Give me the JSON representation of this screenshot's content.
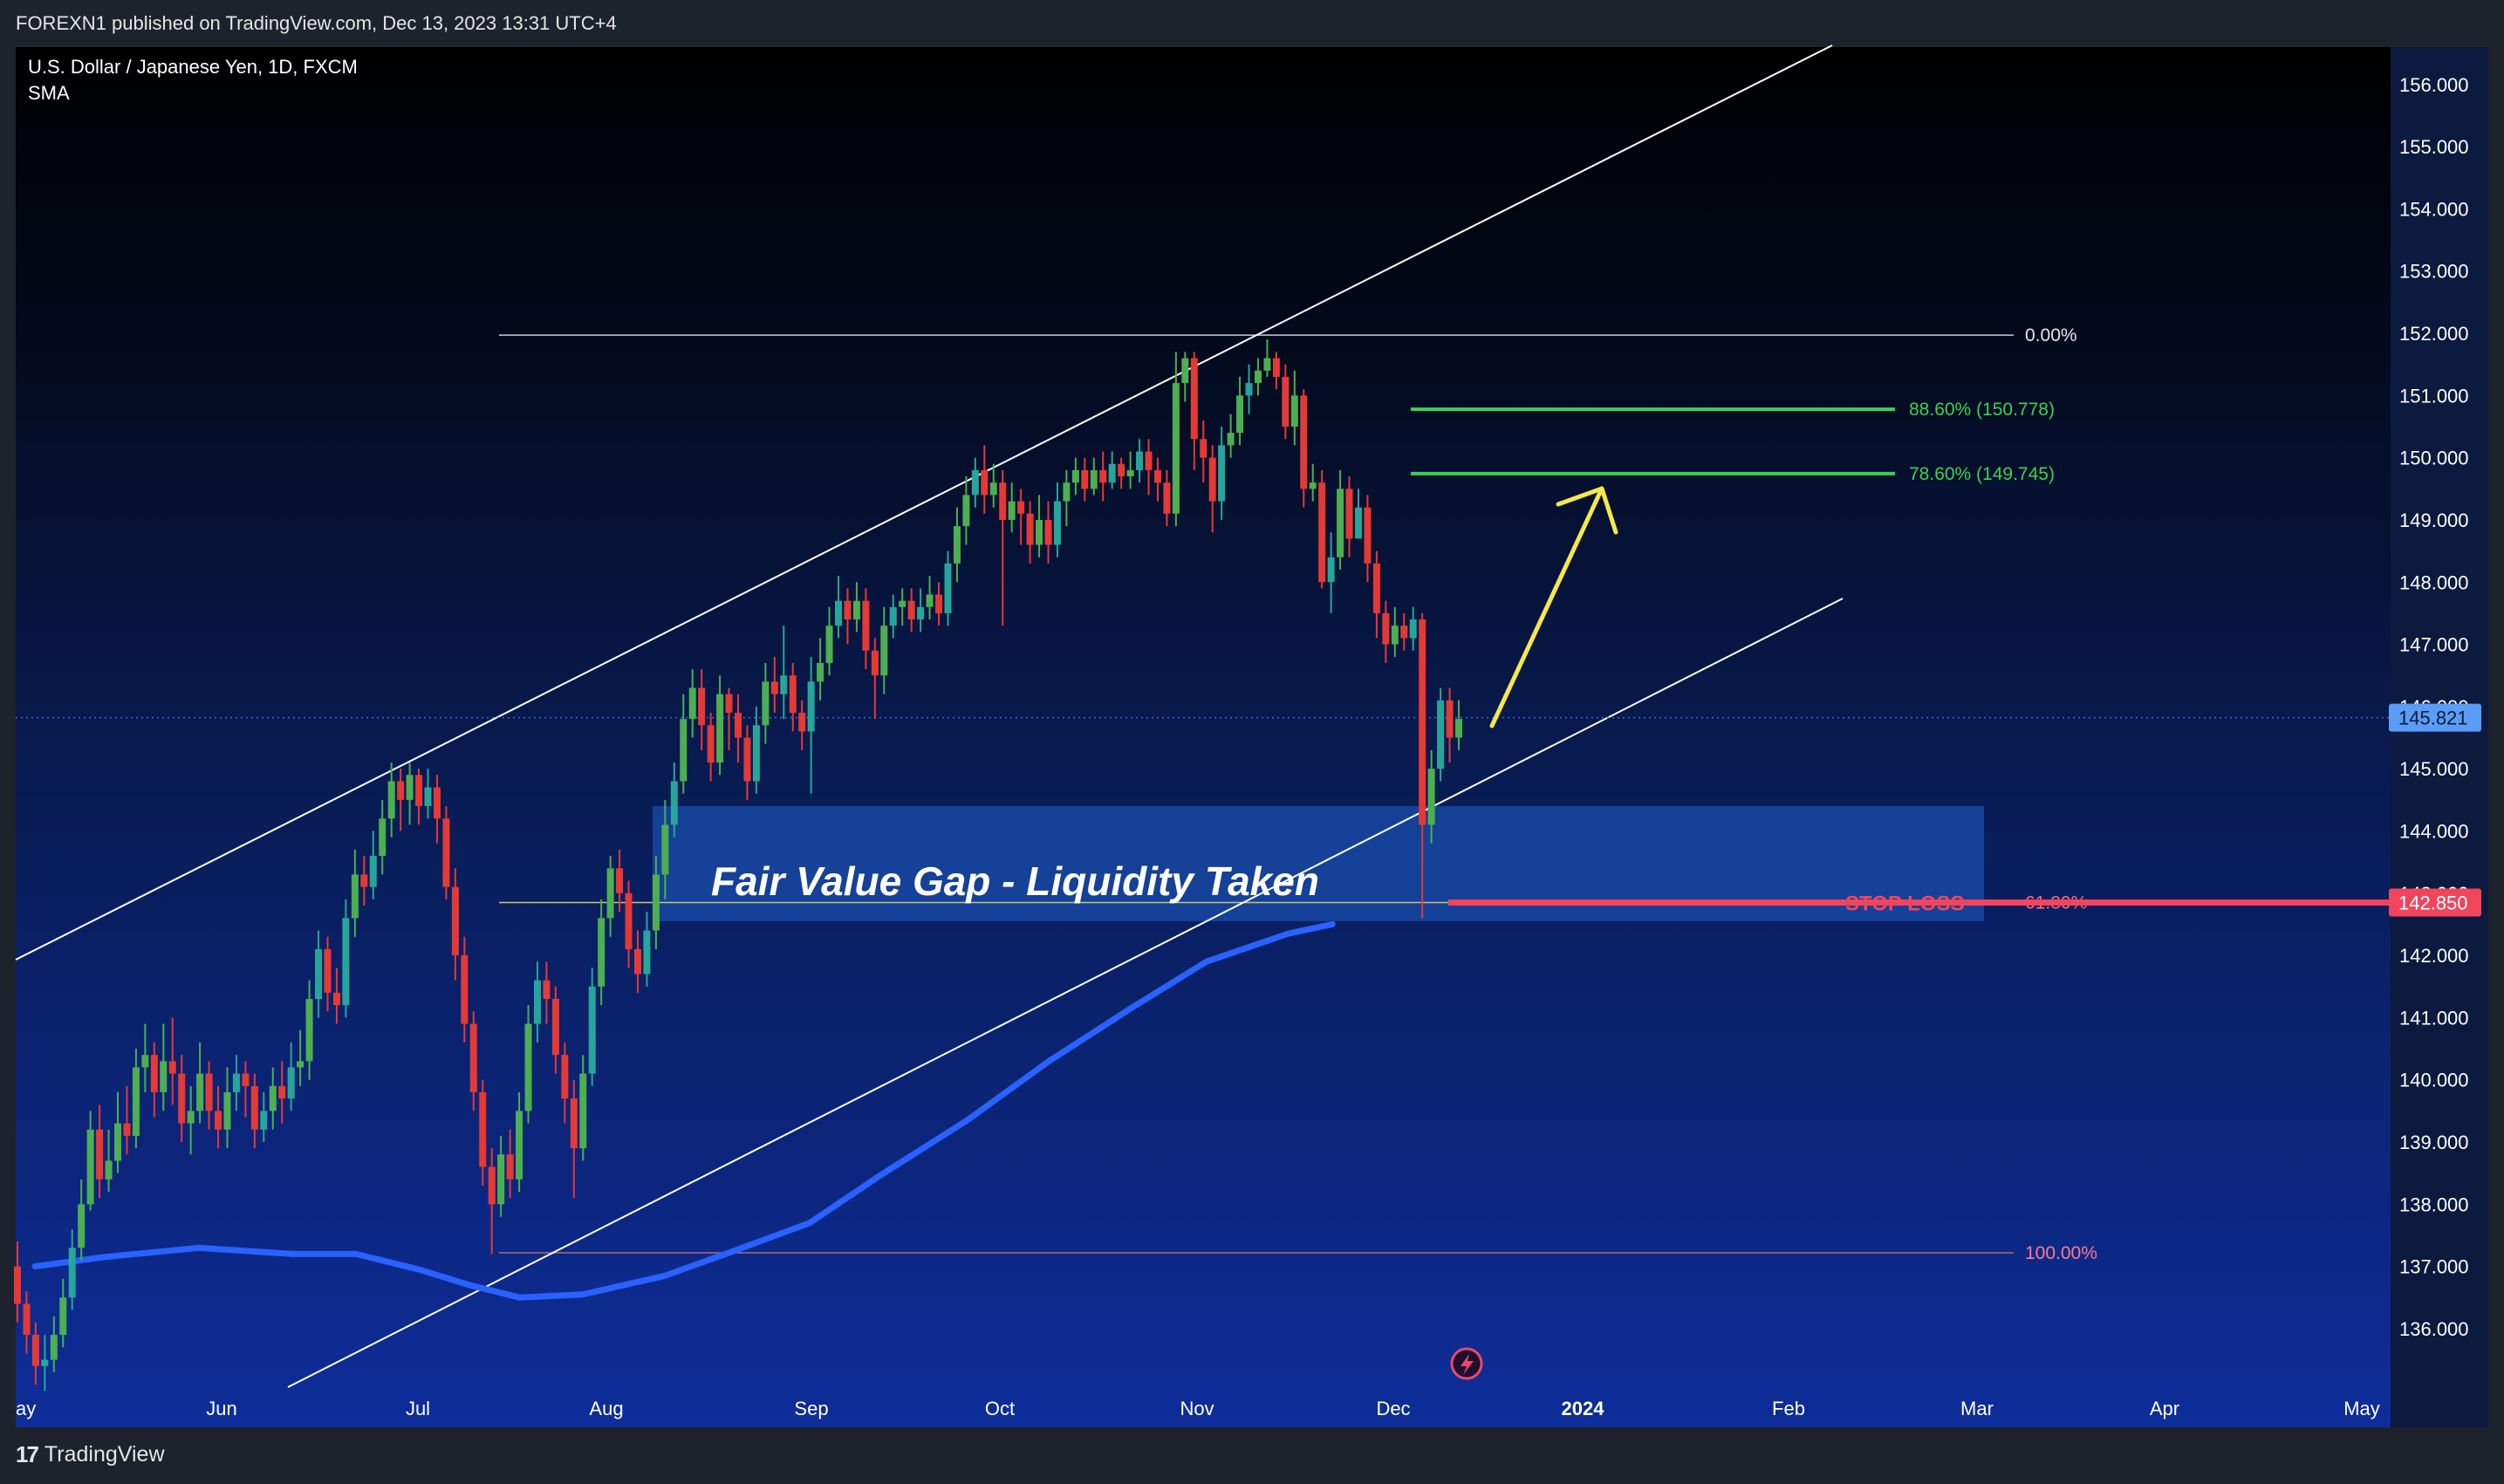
{
  "header": {
    "published": "FOREXN1 published on TradingView.com, Dec 13, 2023 13:31 UTC+4"
  },
  "footer": {
    "logo_glyph": "17",
    "logo_text": "TradingView"
  },
  "chart_data": {
    "type": "candlestick",
    "title": "U.S. Dollar / Japanese Yen, 1D, FXCM",
    "indicator": "SMA",
    "ylim": [
      135.2,
      156.6
    ],
    "y_ticks": [
      "136.000",
      "137.000",
      "138.000",
      "139.000",
      "140.000",
      "141.000",
      "142.000",
      "143.000",
      "144.000",
      "145.000",
      "146.000",
      "147.000",
      "148.000",
      "149.000",
      "150.000",
      "151.000",
      "152.000",
      "153.000",
      "154.000",
      "155.000",
      "156.000"
    ],
    "x_ticks": [
      "ay",
      "Jun",
      "Jul",
      "Aug",
      "Sep",
      "Oct",
      "Nov",
      "Dec",
      "2024",
      "Feb",
      "Mar",
      "Apr",
      "May"
    ],
    "last_price": "145.821",
    "stop_loss_price": "142.850",
    "fib_levels": [
      {
        "label": "0.00%",
        "price": 151.97
      },
      {
        "label": "88.60% (150.778)",
        "price": 150.778
      },
      {
        "label": "78.60% (149.745)",
        "price": 149.745
      },
      {
        "label": "61.80%",
        "price": 142.85
      },
      {
        "label": "100.00%",
        "price": 137.22
      }
    ],
    "annotations": {
      "fvg_label": "Fair Value Gap  - Liquidity Taken",
      "stop_loss_label": "STOP LOSS",
      "fvg_zone": [
        142.55,
        144.4
      ]
    },
    "colors": {
      "up": "#26a69a",
      "up_bright": "#4caf50",
      "down": "#e53935",
      "sma": "#2962ff",
      "fib_green": "#39d353",
      "stop_loss": "#f0455d",
      "arrow": "#f5e84a"
    },
    "sma": [
      [
        "May 20",
        137.0
      ],
      [
        "May 31",
        137.15
      ],
      [
        "Jun 15",
        137.3
      ],
      [
        "Jun 30",
        137.2
      ],
      [
        "Jul 10",
        137.2
      ],
      [
        "Jul 20",
        136.95
      ],
      [
        "Jul 28",
        136.7
      ],
      [
        "Aug 05",
        136.5
      ],
      [
        "Aug 15",
        136.55
      ],
      [
        "Aug 28",
        136.85
      ],
      [
        "Sep 08",
        137.25
      ],
      [
        "Sep 20",
        137.7
      ],
      [
        "Oct 01",
        138.45
      ],
      [
        "Oct 15",
        139.35
      ],
      [
        "Oct 28",
        140.3
      ],
      [
        "Nov 10",
        141.15
      ],
      [
        "Nov 22",
        141.9
      ],
      [
        "Dec 05",
        142.35
      ],
      [
        "Dec 12",
        142.5
      ]
    ],
    "candles": [
      [
        137.0,
        136.4,
        137.4,
        136.1
      ],
      [
        136.4,
        135.9,
        136.6,
        135.6
      ],
      [
        135.9,
        135.4,
        136.1,
        135.1
      ],
      [
        135.4,
        135.5,
        135.9,
        135.0
      ],
      [
        135.5,
        135.9,
        136.2,
        135.3
      ],
      [
        135.9,
        136.5,
        136.8,
        135.7
      ],
      [
        136.5,
        137.3,
        137.6,
        136.3
      ],
      [
        137.3,
        138.0,
        138.4,
        137.1
      ],
      [
        138.0,
        139.2,
        139.5,
        137.9
      ],
      [
        139.2,
        138.4,
        139.6,
        138.1
      ],
      [
        138.4,
        138.7,
        139.2,
        138.2
      ],
      [
        138.7,
        139.3,
        139.8,
        138.5
      ],
      [
        139.3,
        139.1,
        139.9,
        138.8
      ],
      [
        139.1,
        140.2,
        140.5,
        138.9
      ],
      [
        140.2,
        140.4,
        140.9,
        139.8
      ],
      [
        140.4,
        139.8,
        140.6,
        139.4
      ],
      [
        139.8,
        140.3,
        140.9,
        139.5
      ],
      [
        140.3,
        140.1,
        141.0,
        139.6
      ],
      [
        140.1,
        139.3,
        140.4,
        139.0
      ],
      [
        139.3,
        139.5,
        139.9,
        138.8
      ],
      [
        139.5,
        140.1,
        140.6,
        139.3
      ],
      [
        140.1,
        139.5,
        140.3,
        139.2
      ],
      [
        139.5,
        139.2,
        139.9,
        138.9
      ],
      [
        139.2,
        139.8,
        140.2,
        138.9
      ],
      [
        139.8,
        140.1,
        140.4,
        139.5
      ],
      [
        140.1,
        139.9,
        140.3,
        139.4
      ],
      [
        139.9,
        139.2,
        140.1,
        138.9
      ],
      [
        139.2,
        139.5,
        139.8,
        139.0
      ],
      [
        139.5,
        139.9,
        140.2,
        139.2
      ],
      [
        139.9,
        139.7,
        140.3,
        139.3
      ],
      [
        139.7,
        140.2,
        140.6,
        139.5
      ],
      [
        140.2,
        140.3,
        140.8,
        139.9
      ],
      [
        140.3,
        141.3,
        141.6,
        140.0
      ],
      [
        141.3,
        142.1,
        142.4,
        141.0
      ],
      [
        142.1,
        141.4,
        142.3,
        141.1
      ],
      [
        141.4,
        141.2,
        141.8,
        140.9
      ],
      [
        141.2,
        142.6,
        142.9,
        141.0
      ],
      [
        142.6,
        143.3,
        143.7,
        142.3
      ],
      [
        143.3,
        143.1,
        143.6,
        142.8
      ],
      [
        143.1,
        143.6,
        144.0,
        142.9
      ],
      [
        143.6,
        144.2,
        144.5,
        143.3
      ],
      [
        144.2,
        144.8,
        145.1,
        143.9
      ],
      [
        144.8,
        144.5,
        145.0,
        144.0
      ],
      [
        144.5,
        144.9,
        145.1,
        144.1
      ],
      [
        144.9,
        144.4,
        145.0,
        144.1
      ],
      [
        144.4,
        144.7,
        145.0,
        144.2
      ],
      [
        144.7,
        144.2,
        144.9,
        143.8
      ],
      [
        144.2,
        143.1,
        144.4,
        142.9
      ],
      [
        143.1,
        142.0,
        143.4,
        141.6
      ],
      [
        142.0,
        140.9,
        142.3,
        140.6
      ],
      [
        140.9,
        139.8,
        141.1,
        139.5
      ],
      [
        139.8,
        138.6,
        140.0,
        138.3
      ],
      [
        138.6,
        138.0,
        138.9,
        137.2
      ],
      [
        138.0,
        138.8,
        139.1,
        137.8
      ],
      [
        138.8,
        138.4,
        139.2,
        138.1
      ],
      [
        138.4,
        139.5,
        139.8,
        138.2
      ],
      [
        139.5,
        140.9,
        141.2,
        139.3
      ],
      [
        140.9,
        141.6,
        141.9,
        140.6
      ],
      [
        141.6,
        141.3,
        141.9,
        140.9
      ],
      [
        141.3,
        140.4,
        141.5,
        140.1
      ],
      [
        140.4,
        139.7,
        140.6,
        139.3
      ],
      [
        139.7,
        138.9,
        140.0,
        138.1
      ],
      [
        138.9,
        140.1,
        140.4,
        138.7
      ],
      [
        140.1,
        141.5,
        141.8,
        139.9
      ],
      [
        141.5,
        142.6,
        142.9,
        141.2
      ],
      [
        142.6,
        143.4,
        143.6,
        142.3
      ],
      [
        143.4,
        143.0,
        143.7,
        142.7
      ],
      [
        143.0,
        142.1,
        143.2,
        141.8
      ],
      [
        142.1,
        141.7,
        142.4,
        141.4
      ],
      [
        141.7,
        142.4,
        142.7,
        141.5
      ],
      [
        142.4,
        143.3,
        143.6,
        142.1
      ],
      [
        143.3,
        144.1,
        144.5,
        142.9
      ],
      [
        144.1,
        144.8,
        145.1,
        143.9
      ],
      [
        144.8,
        145.8,
        146.2,
        144.6
      ],
      [
        145.8,
        146.3,
        146.6,
        145.5
      ],
      [
        146.3,
        145.7,
        146.6,
        145.3
      ],
      [
        145.7,
        145.1,
        145.9,
        144.8
      ],
      [
        145.1,
        146.2,
        146.5,
        144.9
      ],
      [
        146.2,
        145.9,
        146.3,
        145.3
      ],
      [
        145.9,
        145.5,
        146.2,
        145.1
      ],
      [
        145.5,
        144.8,
        145.7,
        144.5
      ],
      [
        144.8,
        145.7,
        146.0,
        144.6
      ],
      [
        145.7,
        146.4,
        146.7,
        145.4
      ],
      [
        146.4,
        146.2,
        146.8,
        145.9
      ],
      [
        146.2,
        146.5,
        147.3,
        145.8
      ],
      [
        146.5,
        145.9,
        146.7,
        145.6
      ],
      [
        145.9,
        145.6,
        146.1,
        145.3
      ],
      [
        145.6,
        146.4,
        146.8,
        144.6
      ],
      [
        146.4,
        146.7,
        147.1,
        146.1
      ],
      [
        146.7,
        147.3,
        147.6,
        146.5
      ],
      [
        147.3,
        147.7,
        148.1,
        147.1
      ],
      [
        147.7,
        147.4,
        147.9,
        147.0
      ],
      [
        147.4,
        147.7,
        148.0,
        147.2
      ],
      [
        147.7,
        146.9,
        147.9,
        146.6
      ],
      [
        146.9,
        146.5,
        147.1,
        145.8
      ],
      [
        146.5,
        147.3,
        147.6,
        146.2
      ],
      [
        147.3,
        147.6,
        147.8,
        147.1
      ],
      [
        147.6,
        147.7,
        147.9,
        147.3
      ],
      [
        147.7,
        147.4,
        147.9,
        147.2
      ],
      [
        147.4,
        147.6,
        147.9,
        147.2
      ],
      [
        147.6,
        147.8,
        148.1,
        147.4
      ],
      [
        147.8,
        147.5,
        148.0,
        147.3
      ],
      [
        147.5,
        148.3,
        148.5,
        147.3
      ],
      [
        148.3,
        148.9,
        149.2,
        148.0
      ],
      [
        148.9,
        149.4,
        149.7,
        148.6
      ],
      [
        149.4,
        149.8,
        150.0,
        149.2
      ],
      [
        149.8,
        149.4,
        150.2,
        149.1
      ],
      [
        149.4,
        149.6,
        149.9,
        149.2
      ],
      [
        149.6,
        149.0,
        149.8,
        147.3
      ],
      [
        149.0,
        149.3,
        149.6,
        148.8
      ],
      [
        149.3,
        149.1,
        149.5,
        148.6
      ],
      [
        149.1,
        148.6,
        149.3,
        148.3
      ],
      [
        148.6,
        149.0,
        149.4,
        148.4
      ],
      [
        149.0,
        148.6,
        149.3,
        148.3
      ],
      [
        148.6,
        149.3,
        149.6,
        148.4
      ],
      [
        149.3,
        149.6,
        149.8,
        148.9
      ],
      [
        149.6,
        149.8,
        150.0,
        149.4
      ],
      [
        149.8,
        149.5,
        150.0,
        149.3
      ],
      [
        149.5,
        149.8,
        150.0,
        149.4
      ],
      [
        149.8,
        149.6,
        150.1,
        149.3
      ],
      [
        149.6,
        149.9,
        150.1,
        149.5
      ],
      [
        149.9,
        149.7,
        150.0,
        149.5
      ],
      [
        149.7,
        149.8,
        150.1,
        149.5
      ],
      [
        149.8,
        150.1,
        150.3,
        149.6
      ],
      [
        150.1,
        149.8,
        150.3,
        149.4
      ],
      [
        149.8,
        149.6,
        150.0,
        149.3
      ],
      [
        149.6,
        149.1,
        149.8,
        148.9
      ],
      [
        149.1,
        151.2,
        151.7,
        148.9
      ],
      [
        151.2,
        151.6,
        151.7,
        150.9
      ],
      [
        151.6,
        150.3,
        151.7,
        149.8
      ],
      [
        150.3,
        150.0,
        150.6,
        149.6
      ],
      [
        150.0,
        149.3,
        150.2,
        148.8
      ],
      [
        149.3,
        150.2,
        150.5,
        149.0
      ],
      [
        150.2,
        150.4,
        150.7,
        150.0
      ],
      [
        150.4,
        151.0,
        151.3,
        150.2
      ],
      [
        151.0,
        151.2,
        151.5,
        150.7
      ],
      [
        151.2,
        151.4,
        151.6,
        151.0
      ],
      [
        151.4,
        151.6,
        151.9,
        151.3
      ],
      [
        151.6,
        151.3,
        151.7,
        151.1
      ],
      [
        151.3,
        150.5,
        151.5,
        150.3
      ],
      [
        150.5,
        151.0,
        151.4,
        150.2
      ],
      [
        151.0,
        149.5,
        151.1,
        149.2
      ],
      [
        149.5,
        149.6,
        149.9,
        149.3
      ],
      [
        149.6,
        148.0,
        149.8,
        147.9
      ],
      [
        148.0,
        148.4,
        148.8,
        147.5
      ],
      [
        148.4,
        149.5,
        149.8,
        148.2
      ],
      [
        149.5,
        148.7,
        149.7,
        148.4
      ],
      [
        148.7,
        149.2,
        149.5,
        148.8
      ],
      [
        149.2,
        148.3,
        149.4,
        148.0
      ],
      [
        148.3,
        147.5,
        148.5,
        147.1
      ],
      [
        147.5,
        147.0,
        147.7,
        146.7
      ],
      [
        147.0,
        147.3,
        147.6,
        146.8
      ],
      [
        147.3,
        147.1,
        147.5,
        146.9
      ],
      [
        147.1,
        147.4,
        147.6,
        146.9
      ],
      [
        147.4,
        144.1,
        147.5,
        142.6
      ],
      [
        144.1,
        145.0,
        145.3,
        143.8
      ],
      [
        145.0,
        146.1,
        146.3,
        144.8
      ],
      [
        146.1,
        145.5,
        146.3,
        145.1
      ],
      [
        145.5,
        145.8,
        146.1,
        145.3
      ]
    ]
  }
}
